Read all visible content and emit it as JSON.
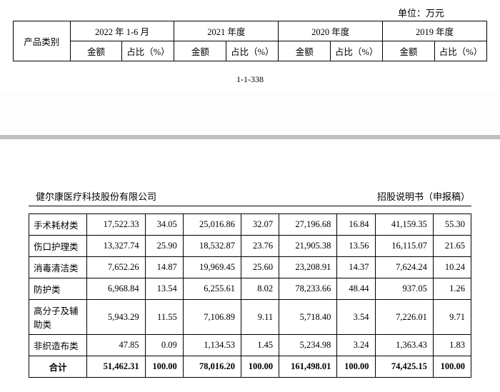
{
  "top": {
    "unit_label": "单位：万元",
    "row_header": "产品类别",
    "periods": [
      {
        "title": "2022 年 1-6 月",
        "amount_label": "金额",
        "pct_label": "占比（%）"
      },
      {
        "title": "2021 年度",
        "amount_label": "金额",
        "pct_label": "占比（%）"
      },
      {
        "title": "2020 年度",
        "amount_label": "金额",
        "pct_label": "占比（%）"
      },
      {
        "title": "2019 年度",
        "amount_label": "金额",
        "pct_label": "占比（%）"
      }
    ],
    "page_number": "1-1-338"
  },
  "bottom": {
    "company_name": "健尔康医疗科技股份有限公司",
    "doc_title": "招股说明书（申报稿）",
    "rows": [
      {
        "label": "手术耗材类",
        "a1": "17,522.33",
        "p1": "34.05",
        "a2": "25,016.86",
        "p2": "32.07",
        "a3": "27,196.68",
        "p3": "16.84",
        "a4": "41,159.35",
        "p4": "55.30"
      },
      {
        "label": "伤口护理类",
        "a1": "13,327.74",
        "p1": "25.90",
        "a2": "18,532.87",
        "p2": "23.76",
        "a3": "21,905.38",
        "p3": "13.56",
        "a4": "16,115.07",
        "p4": "21.65"
      },
      {
        "label": "消毒清洁类",
        "a1": "7,652.26",
        "p1": "14.87",
        "a2": "19,969.45",
        "p2": "25.60",
        "a3": "23,208.91",
        "p3": "14.37",
        "a4": "7,624.24",
        "p4": "10.24"
      },
      {
        "label": "防护类",
        "a1": "6,968.84",
        "p1": "13.54",
        "a2": "6,255.61",
        "p2": "8.02",
        "a3": "78,233.66",
        "p3": "48.44",
        "a4": "937.05",
        "p4": "1.26"
      },
      {
        "label": "高分子及辅助类",
        "a1": "5,943.29",
        "p1": "11.55",
        "a2": "7,106.89",
        "p2": "9.11",
        "a3": "5,718.40",
        "p3": "3.54",
        "a4": "7,226.01",
        "p4": "9.71"
      },
      {
        "label": "非织造布类",
        "a1": "47.85",
        "p1": "0.09",
        "a2": "1,134.53",
        "p2": "1.45",
        "a3": "5,234.98",
        "p3": "3.24",
        "a4": "1,363.43",
        "p4": "1.83"
      }
    ],
    "total": {
      "label": "合计",
      "a1": "51,462.31",
      "p1": "100.00",
      "a2": "78,016.20",
      "p2": "100.00",
      "a3": "161,498.01",
      "p3": "100.00",
      "a4": "74,425.15",
      "p4": "100.00"
    }
  }
}
